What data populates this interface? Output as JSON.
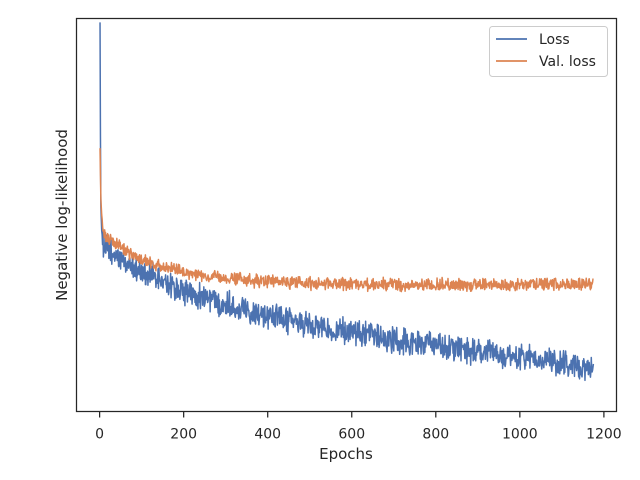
{
  "chart_data": {
    "type": "line",
    "title": "",
    "xlabel": "Epochs",
    "ylabel": "Negative log-likelihood",
    "xlim": [
      -55,
      1230
    ],
    "ylim": [
      0,
      1
    ],
    "x_ticks": [
      0,
      200,
      400,
      600,
      800,
      1000,
      1200
    ],
    "x_tick_labels": [
      "0",
      "200",
      "400",
      "600",
      "800",
      "1000",
      "1200"
    ],
    "y_tick_labels_visible": false,
    "grid": false,
    "legend_position": "top-right",
    "series": [
      {
        "name": "Loss",
        "color": "#4c72b0",
        "x": [
          1,
          2,
          3,
          5,
          8,
          12,
          20,
          30,
          50,
          75,
          100,
          150,
          200,
          250,
          300,
          350,
          400,
          450,
          500,
          550,
          600,
          650,
          700,
          750,
          800,
          850,
          900,
          950,
          1000,
          1050,
          1100,
          1150,
          1175
        ],
        "y": [
          0.99,
          0.7,
          0.52,
          0.46,
          0.43,
          0.42,
          0.41,
          0.4,
          0.385,
          0.37,
          0.355,
          0.33,
          0.305,
          0.29,
          0.275,
          0.26,
          0.245,
          0.23,
          0.22,
          0.21,
          0.2,
          0.19,
          0.182,
          0.175,
          0.168,
          0.16,
          0.152,
          0.145,
          0.138,
          0.13,
          0.122,
          0.115,
          0.11
        ],
        "noise_amplitude": 0.025
      },
      {
        "name": "Val. loss",
        "color": "#dd8452",
        "x": [
          1,
          2,
          3,
          5,
          8,
          12,
          20,
          30,
          50,
          75,
          100,
          150,
          200,
          250,
          300,
          350,
          400,
          450,
          500,
          550,
          600,
          650,
          700,
          750,
          800,
          850,
          900,
          950,
          1000,
          1050,
          1100,
          1150,
          1175
        ],
        "y": [
          0.67,
          0.6,
          0.54,
          0.5,
          0.47,
          0.45,
          0.44,
          0.43,
          0.42,
          0.4,
          0.385,
          0.37,
          0.355,
          0.345,
          0.338,
          0.333,
          0.33,
          0.328,
          0.326,
          0.325,
          0.324,
          0.323,
          0.323,
          0.322,
          0.322,
          0.322,
          0.322,
          0.322,
          0.322,
          0.323,
          0.323,
          0.324,
          0.325
        ],
        "noise_amplitude": 0.012
      }
    ]
  }
}
